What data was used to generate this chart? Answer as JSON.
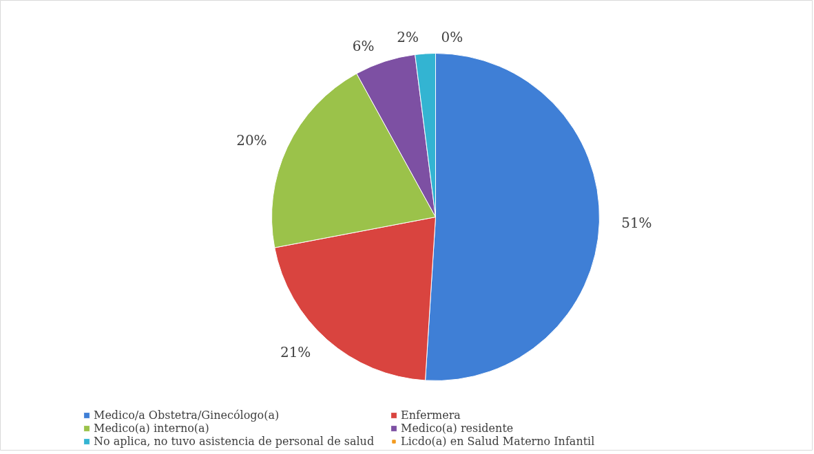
{
  "chart_data": {
    "type": "pie",
    "categories": [
      "Medico/a Obstetra/Ginecólogo(a)",
      "Enfermera",
      "Medico(a) interno(a)",
      "Medico(a) residente",
      "No aplica, no tuvo asistencia de personal de salud",
      "Licdo(a) en Salud Materno Infantil"
    ],
    "values": [
      51,
      21,
      20,
      6,
      2,
      0
    ],
    "value_labels": [
      "51%",
      "21%",
      "20%",
      "6%",
      "2%",
      "0%"
    ],
    "colors": [
      "#3f7fd6",
      "#d9443f",
      "#9bc24a",
      "#7d50a3",
      "#33b4d2",
      "#f29a1f"
    ],
    "legend": "bottom"
  }
}
